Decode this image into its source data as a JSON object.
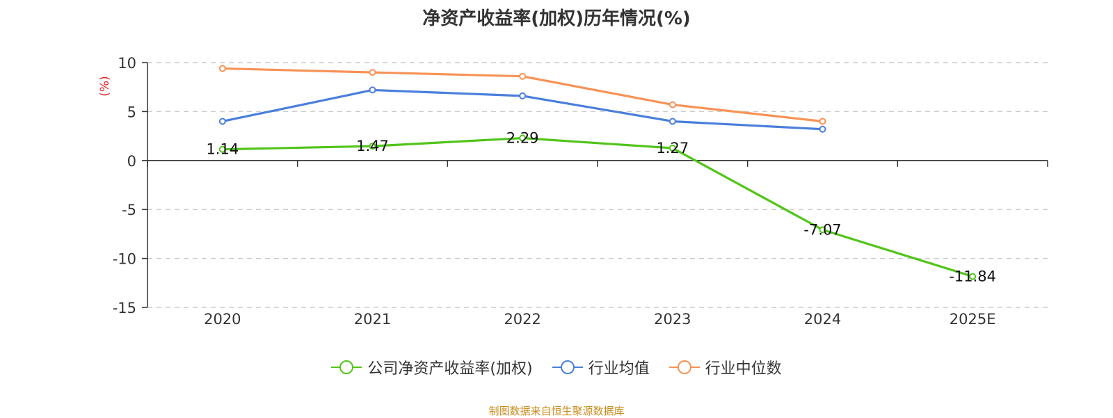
{
  "chart_data": {
    "type": "line",
    "title": "净资产收益率(加权)历年情况(%)",
    "ylabel": "(%)",
    "categories": [
      "2020",
      "2021",
      "2022",
      "2023",
      "2024",
      "2025E"
    ],
    "ylim": [
      -15,
      10
    ],
    "yticks": [
      10,
      5,
      0,
      -5,
      -10,
      -15
    ],
    "ytick_labels": [
      "10",
      "5",
      "0",
      "-5",
      "-10",
      "-15"
    ],
    "grid": true,
    "legend_position": "bottom",
    "series": [
      {
        "name": "公司净资产收益率(加权)",
        "color": "#52c41a",
        "values": [
          1.14,
          1.47,
          2.29,
          1.27,
          -7.07,
          -11.84
        ],
        "labels": [
          "1.14",
          "1.47",
          "2.29",
          "1.27",
          "-7.07",
          "-11.84"
        ],
        "show_labels": true
      },
      {
        "name": "行业均值",
        "color": "#4a7fdb",
        "values": [
          4.0,
          7.2,
          6.6,
          4.0,
          3.2,
          null
        ],
        "show_labels": false
      },
      {
        "name": "行业中位数",
        "color": "#f79256",
        "values": [
          9.4,
          9.0,
          8.6,
          5.7,
          4.0,
          null
        ],
        "show_labels": false
      }
    ]
  },
  "source": "制图数据来自恒生聚源数据库"
}
